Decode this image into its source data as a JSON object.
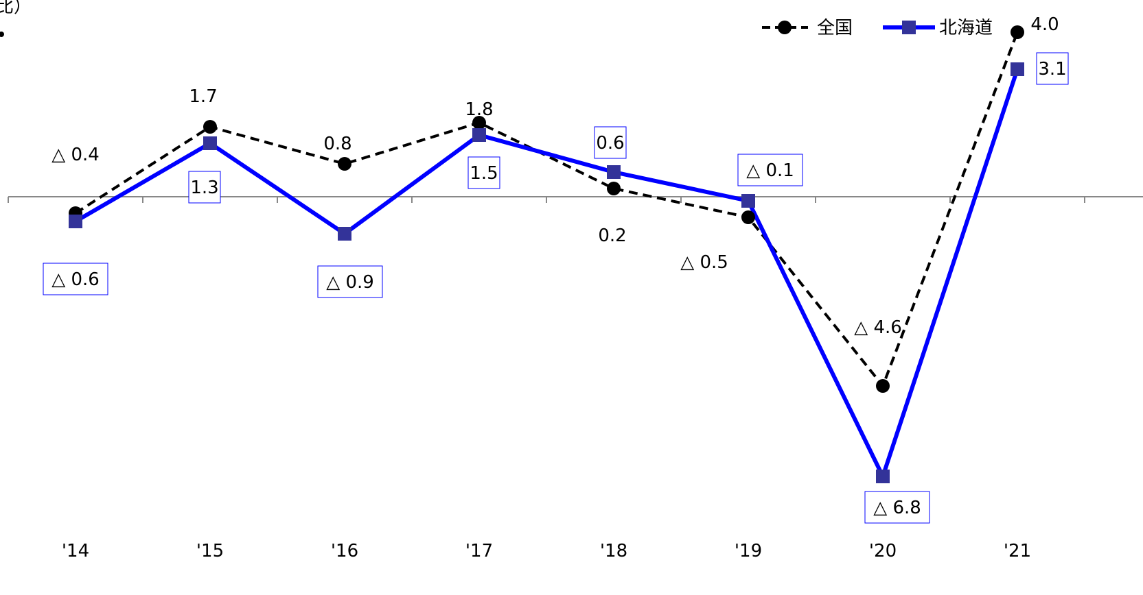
{
  "chart_data": {
    "type": "line",
    "ylabel_fragment": "比）",
    "categories": [
      "'14",
      "'15",
      "'16",
      "'17",
      "'18",
      "'19",
      "'20",
      "'21"
    ],
    "series": [
      {
        "name": "全国",
        "color": "#000000",
        "style": "dashed",
        "marker": "circle",
        "values": [
          -0.4,
          1.7,
          0.8,
          1.8,
          0.2,
          -0.5,
          -4.6,
          4.0
        ],
        "labels": [
          "△ 0.4",
          "1.7",
          "0.8",
          "1.8",
          "0.2",
          "△ 0.5",
          "△ 4.6",
          "4.0"
        ]
      },
      {
        "name": "北海道",
        "color": "#0000ff",
        "marker_color": "#333399",
        "style": "solid",
        "marker": "square",
        "values": [
          -0.6,
          1.3,
          -0.9,
          1.5,
          0.6,
          -0.1,
          -6.8,
          3.1
        ],
        "labels": [
          "△ 0.6",
          "1.3",
          "△ 0.9",
          "1.5",
          "0.6",
          "△ 0.1",
          "△ 6.8",
          "3.1"
        ],
        "boxed_labels": true
      }
    ],
    "ylim": [
      -8,
      4.7
    ],
    "zero_line": true,
    "grid": false,
    "legend_position": "top-right"
  }
}
